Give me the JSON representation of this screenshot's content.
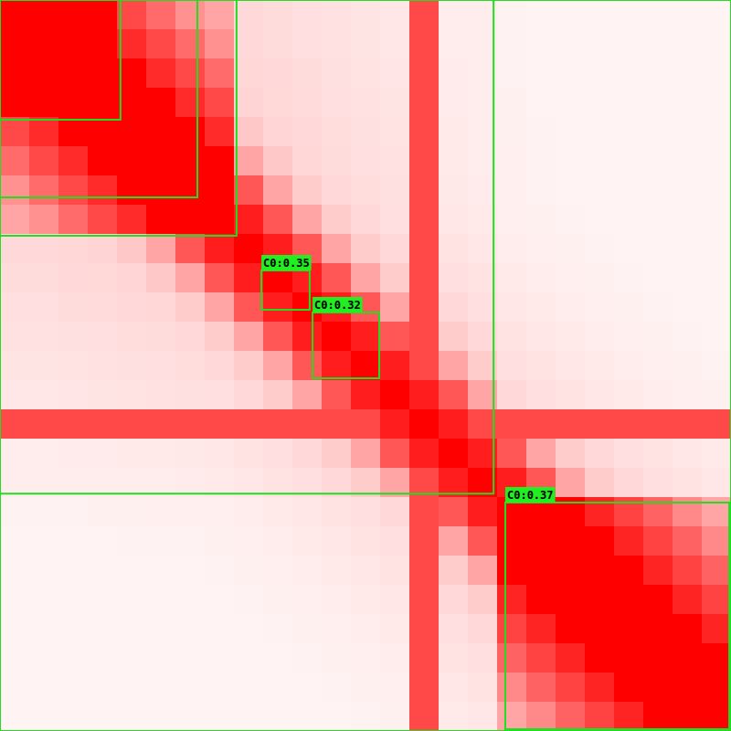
{
  "chart_data": {
    "type": "heatmap",
    "xlim": [
      0,
      25
    ],
    "ylim": [
      0,
      25
    ],
    "zlim": [
      0,
      100
    ],
    "tick_labels": false,
    "color": "#ff0000",
    "cells": [
      [
        100,
        100,
        100,
        100,
        70,
        60,
        50,
        45,
        28,
        26,
        24,
        22,
        20,
        18,
        70,
        14,
        13,
        10,
        9,
        9,
        9,
        9,
        9,
        9,
        9
      ],
      [
        100,
        100,
        100,
        100,
        82,
        70,
        60,
        50,
        28,
        26,
        24,
        22,
        20,
        18,
        70,
        14,
        13,
        10,
        9,
        9,
        9,
        9,
        9,
        9,
        9
      ],
      [
        100,
        100,
        100,
        100,
        100,
        82,
        70,
        60,
        30,
        28,
        26,
        23,
        21,
        19,
        70,
        15,
        13,
        10,
        9,
        9,
        9,
        9,
        9,
        9,
        9
      ],
      [
        100,
        100,
        100,
        100,
        100,
        100,
        82,
        70,
        32,
        29,
        27,
        24,
        22,
        20,
        70,
        15,
        14,
        11,
        9,
        9,
        9,
        9,
        9,
        9,
        9
      ],
      [
        70,
        82,
        100,
        100,
        100,
        100,
        100,
        82,
        36,
        31,
        28,
        25,
        23,
        21,
        70,
        16,
        14,
        11,
        10,
        9,
        9,
        9,
        9,
        9,
        9
      ],
      [
        60,
        70,
        82,
        100,
        100,
        100,
        100,
        100,
        45,
        36,
        30,
        26,
        24,
        22,
        70,
        16,
        14,
        12,
        10,
        9,
        9,
        9,
        9,
        9,
        9
      ],
      [
        50,
        60,
        70,
        82,
        100,
        100,
        100,
        100,
        65,
        45,
        35,
        28,
        25,
        23,
        70,
        17,
        15,
        12,
        10,
        9,
        9,
        9,
        9,
        9,
        9
      ],
      [
        45,
        50,
        60,
        70,
        82,
        100,
        100,
        100,
        88,
        65,
        45,
        35,
        28,
        24,
        70,
        18,
        16,
        12,
        11,
        10,
        9,
        9,
        9,
        9,
        9
      ],
      [
        28,
        28,
        30,
        32,
        36,
        45,
        65,
        88,
        100,
        88,
        65,
        45,
        35,
        28,
        70,
        21,
        18,
        14,
        12,
        11,
        10,
        9,
        9,
        9,
        9
      ],
      [
        26,
        26,
        28,
        29,
        31,
        36,
        45,
        65,
        88,
        100,
        88,
        65,
        45,
        35,
        70,
        24,
        21,
        16,
        14,
        12,
        11,
        10,
        9,
        9,
        9
      ],
      [
        24,
        24,
        26,
        27,
        28,
        30,
        35,
        45,
        65,
        88,
        100,
        88,
        65,
        45,
        70,
        28,
        24,
        18,
        16,
        14,
        12,
        11,
        10,
        9,
        9
      ],
      [
        22,
        22,
        23,
        24,
        25,
        26,
        28,
        35,
        45,
        65,
        88,
        100,
        88,
        65,
        70,
        35,
        28,
        21,
        18,
        16,
        14,
        12,
        11,
        10,
        9
      ],
      [
        20,
        20,
        21,
        22,
        23,
        24,
        25,
        28,
        35,
        45,
        65,
        88,
        100,
        88,
        70,
        45,
        35,
        24,
        21,
        18,
        16,
        14,
        12,
        11,
        10
      ],
      [
        18,
        18,
        19,
        20,
        21,
        22,
        23,
        24,
        28,
        35,
        45,
        65,
        88,
        100,
        88,
        65,
        45,
        28,
        24,
        21,
        18,
        16,
        14,
        12,
        11
      ],
      [
        70,
        70,
        70,
        70,
        70,
        70,
        70,
        70,
        70,
        70,
        70,
        70,
        70,
        88,
        100,
        88,
        70,
        70,
        70,
        70,
        70,
        70,
        70,
        70,
        70
      ],
      [
        14,
        14,
        15,
        15,
        16,
        16,
        17,
        18,
        21,
        24,
        28,
        35,
        45,
        65,
        88,
        100,
        88,
        65,
        45,
        35,
        28,
        24,
        21,
        18,
        16
      ],
      [
        13,
        13,
        13,
        14,
        14,
        14,
        15,
        16,
        18,
        21,
        24,
        28,
        35,
        45,
        70,
        88,
        100,
        88,
        65,
        45,
        35,
        28,
        24,
        21,
        18
      ],
      [
        10,
        10,
        10,
        11,
        11,
        12,
        12,
        12,
        14,
        16,
        18,
        21,
        24,
        28,
        70,
        65,
        88,
        100,
        100,
        100,
        85,
        72,
        62,
        52,
        45
      ],
      [
        9,
        9,
        9,
        9,
        10,
        10,
        10,
        11,
        12,
        14,
        16,
        18,
        21,
        24,
        70,
        45,
        65,
        100,
        100,
        100,
        100,
        85,
        72,
        62,
        52
      ],
      [
        9,
        9,
        9,
        9,
        9,
        9,
        9,
        10,
        11,
        12,
        14,
        16,
        18,
        21,
        70,
        35,
        45,
        100,
        100,
        100,
        100,
        100,
        85,
        72,
        62
      ],
      [
        9,
        9,
        9,
        9,
        9,
        9,
        9,
        9,
        10,
        11,
        12,
        14,
        16,
        18,
        70,
        28,
        35,
        85,
        100,
        100,
        100,
        100,
        100,
        85,
        72
      ],
      [
        9,
        9,
        9,
        9,
        9,
        9,
        9,
        9,
        9,
        10,
        11,
        12,
        14,
        16,
        70,
        24,
        28,
        72,
        85,
        100,
        100,
        100,
        100,
        100,
        85
      ],
      [
        9,
        9,
        9,
        9,
        9,
        9,
        9,
        9,
        9,
        9,
        10,
        11,
        12,
        14,
        70,
        21,
        24,
        62,
        72,
        85,
        100,
        100,
        100,
        100,
        100
      ],
      [
        9,
        9,
        9,
        9,
        9,
        9,
        9,
        9,
        9,
        9,
        9,
        10,
        11,
        12,
        70,
        18,
        21,
        52,
        62,
        72,
        85,
        100,
        100,
        100,
        100
      ],
      [
        9,
        9,
        9,
        9,
        9,
        9,
        9,
        9,
        9,
        9,
        9,
        9,
        10,
        11,
        70,
        16,
        18,
        45,
        52,
        62,
        72,
        85,
        100,
        100,
        100
      ]
    ],
    "boxes": [
      {
        "range": [
          0,
          0,
          25,
          25
        ]
      },
      {
        "range": [
          0,
          0,
          4.12,
          4.09
        ]
      },
      {
        "range": [
          0,
          0,
          6.75,
          6.75
        ]
      },
      {
        "range": [
          0,
          0,
          8.09,
          8.06
        ]
      },
      {
        "range": [
          0,
          0,
          16.88,
          16.88
        ]
      },
      {
        "range": [
          8.94,
          9.25,
          10.59,
          10.59
        ],
        "label": "C0:0.35"
      },
      {
        "range": [
          10.69,
          10.69,
          12.97,
          12.94
        ],
        "label": "C0:0.32"
      },
      {
        "range": [
          17.28,
          17.19,
          24.94,
          24.94
        ],
        "label": "C0:0.37"
      }
    ]
  }
}
